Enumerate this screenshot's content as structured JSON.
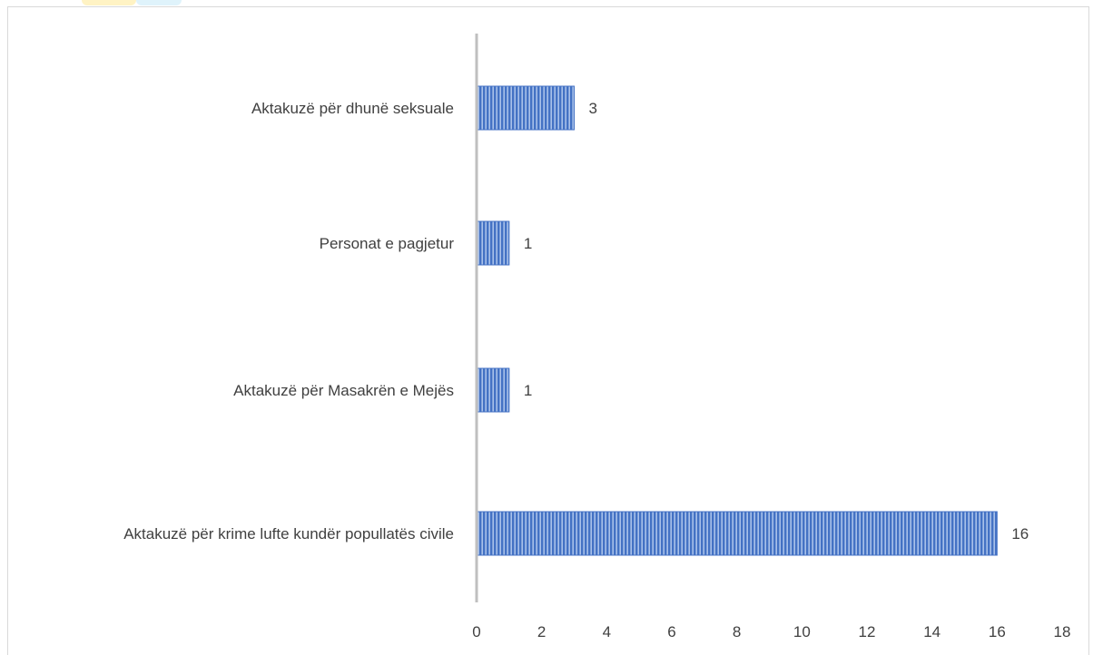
{
  "chart_data": {
    "type": "bar",
    "orientation": "horizontal",
    "categories": [
      "Aktakuzë për dhunë seksuale",
      "Personat e pagjetur",
      "Aktakuzë për Masakrën e Mejës",
      "Aktakuzë për krime lufte kundër popullatës civile"
    ],
    "values": [
      3,
      1,
      1,
      16
    ],
    "data_labels": [
      "3",
      "1",
      "1",
      "16"
    ],
    "xlim": [
      0,
      18
    ],
    "x_ticks": [
      "0",
      "2",
      "4",
      "6",
      "8",
      "10",
      "12",
      "14",
      "16",
      "18"
    ],
    "title": "",
    "xlabel": "",
    "ylabel": "",
    "grid": false,
    "legend": "none",
    "bar_color": "#4472c4",
    "bar_fill": "vertical-hatch"
  }
}
